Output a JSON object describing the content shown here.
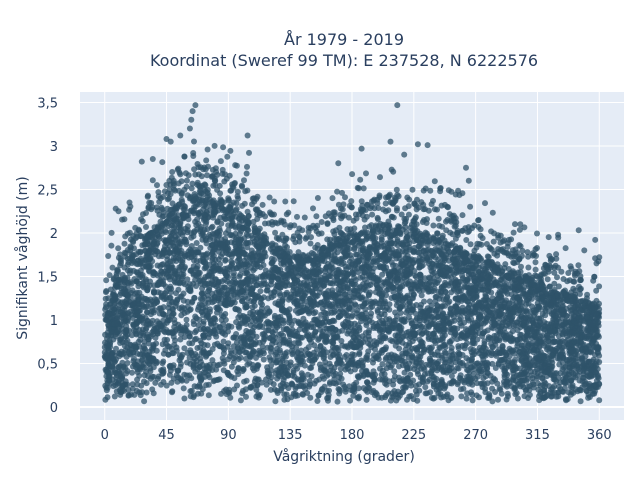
{
  "chart_data": {
    "type": "scatter",
    "title_line1": "År 1979 - 2019",
    "title_line2": "Koordinat (Sweref 99 TM): E 237528, N 6222576",
    "xlabel": "Vågriktning (grader)",
    "ylabel": "Signifikant våghöjd (m)",
    "xlim": [
      -18,
      378
    ],
    "ylim": [
      -0.15,
      3.62
    ],
    "x_ticks": [
      0,
      45,
      90,
      135,
      180,
      225,
      270,
      315,
      360
    ],
    "x_tick_labels": [
      "0",
      "45",
      "90",
      "135",
      "180",
      "225",
      "270",
      "315",
      "360"
    ],
    "y_ticks": [
      0,
      0.5,
      1,
      1.5,
      2,
      2.5,
      3,
      3.5
    ],
    "y_tick_labels": [
      "0",
      "0,5",
      "1",
      "1,5",
      "2",
      "2,5",
      "3",
      "3,5"
    ],
    "grid": true,
    "marker_color": "#2f5369",
    "plot_background": "#e5ecf6",
    "envelope": {
      "direction": [
        0,
        10,
        20,
        30,
        45,
        55,
        65,
        75,
        90,
        100,
        110,
        120,
        135,
        150,
        165,
        180,
        195,
        210,
        225,
        240,
        255,
        270,
        285,
        300,
        315,
        330,
        345,
        360
      ],
      "typical_max_height": [
        1.0,
        1.5,
        1.75,
        1.95,
        2.25,
        2.35,
        2.45,
        2.45,
        2.35,
        2.2,
        2.05,
        1.9,
        1.75,
        1.75,
        1.9,
        2.05,
        2.1,
        2.1,
        2.05,
        1.95,
        1.85,
        1.75,
        1.65,
        1.55,
        1.45,
        1.35,
        1.25,
        1.15
      ]
    },
    "outliers": [
      {
        "x": 66,
        "y": 3.47
      },
      {
        "x": 64,
        "y": 3.4
      },
      {
        "x": 63,
        "y": 3.3
      },
      {
        "x": 62,
        "y": 3.2
      },
      {
        "x": 48,
        "y": 3.05
      },
      {
        "x": 55,
        "y": 3.12
      },
      {
        "x": 45,
        "y": 3.08
      },
      {
        "x": 80,
        "y": 3.0
      },
      {
        "x": 104,
        "y": 3.12
      },
      {
        "x": 105,
        "y": 2.92
      },
      {
        "x": 35,
        "y": 2.85
      },
      {
        "x": 27,
        "y": 2.82
      },
      {
        "x": 95,
        "y": 2.78
      },
      {
        "x": 213,
        "y": 3.47
      },
      {
        "x": 208,
        "y": 3.05
      },
      {
        "x": 228,
        "y": 3.02
      },
      {
        "x": 235,
        "y": 3.01
      },
      {
        "x": 187,
        "y": 2.97
      },
      {
        "x": 218,
        "y": 2.9
      },
      {
        "x": 170,
        "y": 2.8
      },
      {
        "x": 263,
        "y": 2.75
      },
      {
        "x": 265,
        "y": 2.6
      },
      {
        "x": 330,
        "y": 1.98
      },
      {
        "x": 345,
        "y": 2.03
      },
      {
        "x": 357,
        "y": 1.92
      },
      {
        "x": 360,
        "y": 1.72
      },
      {
        "x": 358,
        "y": 1.65
      },
      {
        "x": 5,
        "y": 2.0
      },
      {
        "x": 8,
        "y": 2.28
      },
      {
        "x": 10,
        "y": 2.25
      },
      {
        "x": 18,
        "y": 2.35
      }
    ]
  }
}
